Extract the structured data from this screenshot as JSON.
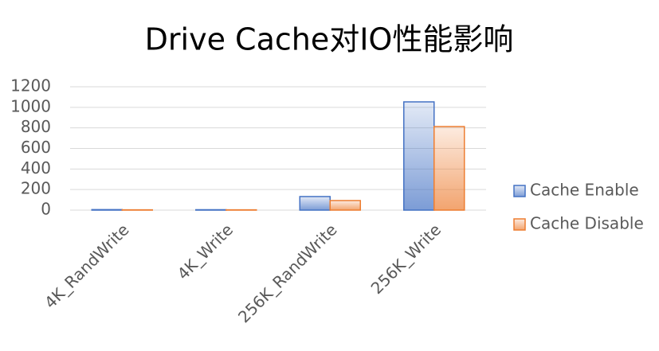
{
  "chart_data": {
    "type": "bar",
    "title": "Drive Cache对IO性能影响",
    "categories": [
      "4K_RandWrite",
      "4K_Write",
      "256K_RandWrite",
      "256K_Write"
    ],
    "series": [
      {
        "name": "Cache Enable",
        "color": "#4472c4",
        "values": [
          5,
          4,
          132,
          1053
        ]
      },
      {
        "name": "Cache Disable",
        "color": "#ed7d31",
        "values": [
          3,
          3,
          93,
          813
        ]
      }
    ],
    "ylim": [
      0,
      1200
    ],
    "yticks": [
      0,
      200,
      400,
      600,
      800,
      1000,
      1200
    ],
    "grid": true,
    "legend": "right"
  }
}
